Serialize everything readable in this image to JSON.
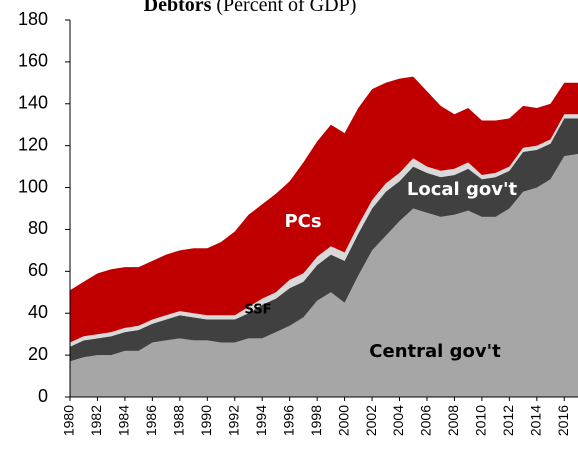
{
  "chart_data": {
    "type": "stacked_area",
    "title": "Debtors",
    "subtitle": "(Percent of GDP)",
    "x": [
      1980,
      1981,
      1982,
      1983,
      1984,
      1985,
      1986,
      1987,
      1988,
      1989,
      1990,
      1991,
      1992,
      1993,
      1994,
      1995,
      1996,
      1997,
      1998,
      1999,
      2000,
      2001,
      2002,
      2003,
      2004,
      2005,
      2006,
      2007,
      2008,
      2009,
      2010,
      2011,
      2012,
      2013,
      2014,
      2015,
      2016,
      2017
    ],
    "xlim": [
      1980,
      2017
    ],
    "xticks": [
      1980,
      1982,
      1984,
      1986,
      1988,
      1990,
      1992,
      1994,
      1996,
      1998,
      2000,
      2002,
      2004,
      2006,
      2008,
      2010,
      2012,
      2014,
      2016
    ],
    "ylim": [
      0,
      180
    ],
    "yticks": [
      0,
      20,
      40,
      60,
      80,
      100,
      120,
      140,
      160,
      180
    ],
    "series": [
      {
        "name": "Central gov't",
        "color": "#a6a6a6",
        "values": [
          17,
          19,
          20,
          20,
          22,
          22,
          26,
          27,
          28,
          27,
          27,
          26,
          26,
          28,
          28,
          31,
          34,
          38,
          46,
          50,
          45,
          58,
          70,
          77,
          84,
          90,
          88,
          86,
          87,
          89,
          86,
          86,
          90,
          98,
          100,
          104,
          115,
          116
        ]
      },
      {
        "name": "Local gov't",
        "color": "#404040",
        "values": [
          7,
          8,
          8,
          9,
          9,
          10,
          9,
          10,
          11,
          11,
          10,
          11,
          11,
          12,
          16,
          16,
          18,
          17,
          17,
          18,
          20,
          20,
          20,
          21,
          19,
          20,
          19,
          19,
          19,
          20,
          18,
          19,
          18,
          19,
          18,
          17,
          18,
          17
        ]
      },
      {
        "name": "SSF",
        "color": "#d9d9d9",
        "values": [
          2,
          2,
          2,
          2,
          2,
          2,
          2,
          2,
          2,
          2,
          2,
          2,
          2,
          3,
          3,
          3,
          4,
          4,
          4,
          4,
          4,
          4,
          4,
          4,
          4,
          4,
          3,
          3,
          3,
          3,
          2,
          2,
          2,
          2,
          2,
          2,
          2,
          2
        ]
      },
      {
        "name": "PCs",
        "color": "#c00000",
        "values": [
          25,
          26,
          29,
          30,
          29,
          28,
          28,
          29,
          29,
          31,
          32,
          35,
          40,
          44,
          45,
          47,
          47,
          53,
          55,
          58,
          57,
          56,
          53,
          48,
          45,
          39,
          36,
          31,
          26,
          26,
          26,
          25,
          23,
          20,
          18,
          17,
          15,
          15
        ]
      }
    ]
  }
}
